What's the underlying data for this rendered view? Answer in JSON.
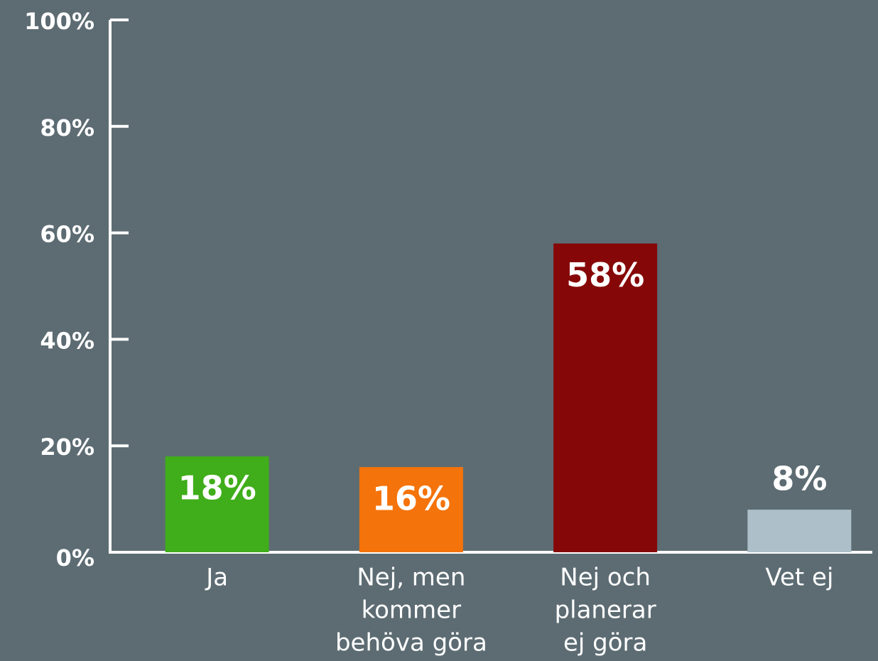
{
  "chart_data": {
    "type": "bar",
    "categories": [
      [
        "Ja"
      ],
      [
        "Nej, men",
        "kommer",
        "behöva göra"
      ],
      [
        "Nej och",
        "planerar",
        "ej göra"
      ],
      [
        "Vet ej"
      ]
    ],
    "values": [
      18,
      16,
      58,
      8
    ],
    "value_labels": [
      "18%",
      "16%",
      "58%",
      "8%"
    ],
    "colors": [
      "#40ad1a",
      "#f4730a",
      "#860707",
      "#adbfc8"
    ],
    "ylim": [
      0,
      100
    ],
    "yticks": [
      {
        "value": 0,
        "label": "0%"
      },
      {
        "value": 20,
        "label": "20%"
      },
      {
        "value": 40,
        "label": "40%"
      },
      {
        "value": 60,
        "label": "60%"
      },
      {
        "value": 80,
        "label": "80%"
      },
      {
        "value": 100,
        "label": "100%"
      }
    ],
    "grid": false
  }
}
